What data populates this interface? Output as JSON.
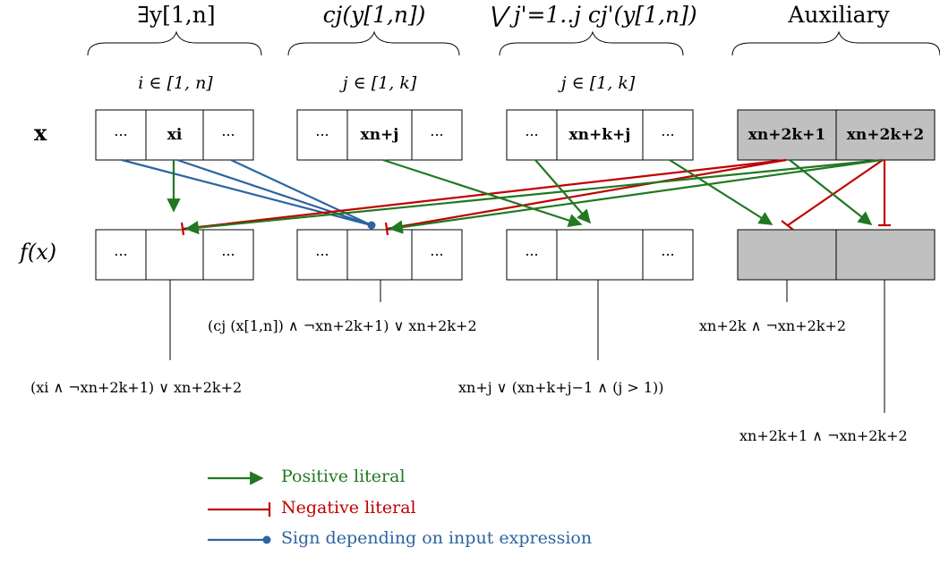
{
  "headers": {
    "exists": "∃y[1,n]",
    "clause": "cj(y[1,n])",
    "disj": "⋁ j'=1..j cj'(y[1,n])",
    "aux": "Auxiliary"
  },
  "ranges": {
    "r1": "i ∈ [1, n]",
    "r2": "j ∈ [1, k]",
    "r3": "j ∈ [1, k]"
  },
  "rows": {
    "input": "x",
    "output": "f(x)"
  },
  "cells": {
    "dots": "···",
    "xi": "xi",
    "xnj": "xn+j",
    "xnkj": "xn+k+j",
    "xa1": "xn+2k+1",
    "xa2": "xn+2k+2"
  },
  "annotations": {
    "a1": "(xi ∧ ¬xn+2k+1) ∨ xn+2k+2",
    "a2": "(cj (x[1,n]) ∧ ¬xn+2k+1) ∨ xn+2k+2",
    "a3": "xn+j ∨ (xn+k+j−1 ∧ (j > 1))",
    "a4": "xn+2k ∧ ¬xn+2k+2",
    "a5": "xn+2k+1 ∧ ¬xn+2k+2"
  },
  "legend": {
    "positive": "Positive literal",
    "negative": "Negative literal",
    "sign": "Sign depending on input expression"
  },
  "colors": {
    "positive": "#217821",
    "negative": "#c00000",
    "sign": "#2c64a0",
    "aux_fill": "#c0c0c0"
  }
}
